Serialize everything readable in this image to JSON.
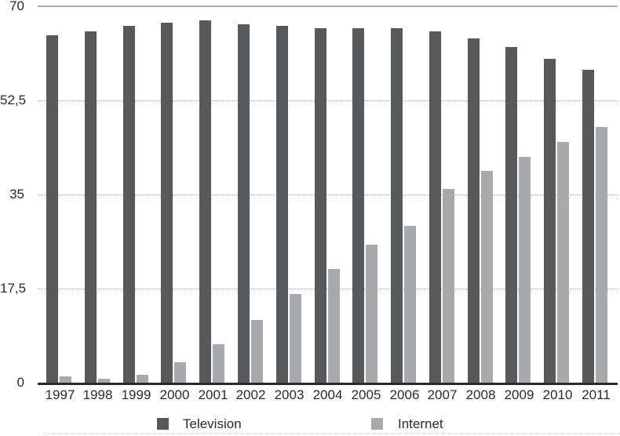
{
  "chart_data": {
    "type": "bar",
    "title": "",
    "xlabel": "",
    "ylabel": "",
    "categories": [
      "1997",
      "1998",
      "1999",
      "2000",
      "2001",
      "2002",
      "2003",
      "2004",
      "2005",
      "2006",
      "2007",
      "2008",
      "2009",
      "2010",
      "2011"
    ],
    "series": [
      {
        "name": "Television",
        "color": "#58595B",
        "values": [
          64.6,
          65.3,
          66.3,
          67.0,
          67.4,
          66.7,
          66.3,
          65.9,
          65.9,
          65.9,
          65.3,
          64.0,
          62.4,
          60.3,
          58.2
        ]
      },
      {
        "name": "Internet",
        "color": "#A7A9AC",
        "values": [
          1.1,
          0.8,
          1.5,
          3.8,
          7.1,
          11.6,
          16.5,
          21.2,
          25.6,
          29.1,
          36.0,
          39.4,
          42.0,
          44.8,
          47.6
        ]
      }
    ],
    "ylim": [
      0,
      70
    ],
    "yticks": [
      {
        "value": 0,
        "label": "0"
      },
      {
        "value": 17.5,
        "label": "17,5"
      },
      {
        "value": 35,
        "label": "35"
      },
      {
        "value": 52.5,
        "label": "52,5"
      },
      {
        "value": 70,
        "label": "70"
      }
    ],
    "grid": "horizontal dotted gridlines; solid gray line at top (70); thick dark baseline at 0",
    "legend_position": "bottom"
  },
  "legend": {
    "items": [
      {
        "label": "Television",
        "color": "#58595B"
      },
      {
        "label": "Internet",
        "color": "#A7A9AC"
      }
    ]
  },
  "colors": {
    "television_bar": "#58595B",
    "internet_bar": "#A7A9AC",
    "axis_line": "#2A2A2C",
    "gridline_dotted": "#9E9EA0",
    "gridline_top_solid": "#AAACAE",
    "text": "#2B2B2D",
    "background": "#FFFFFF"
  }
}
